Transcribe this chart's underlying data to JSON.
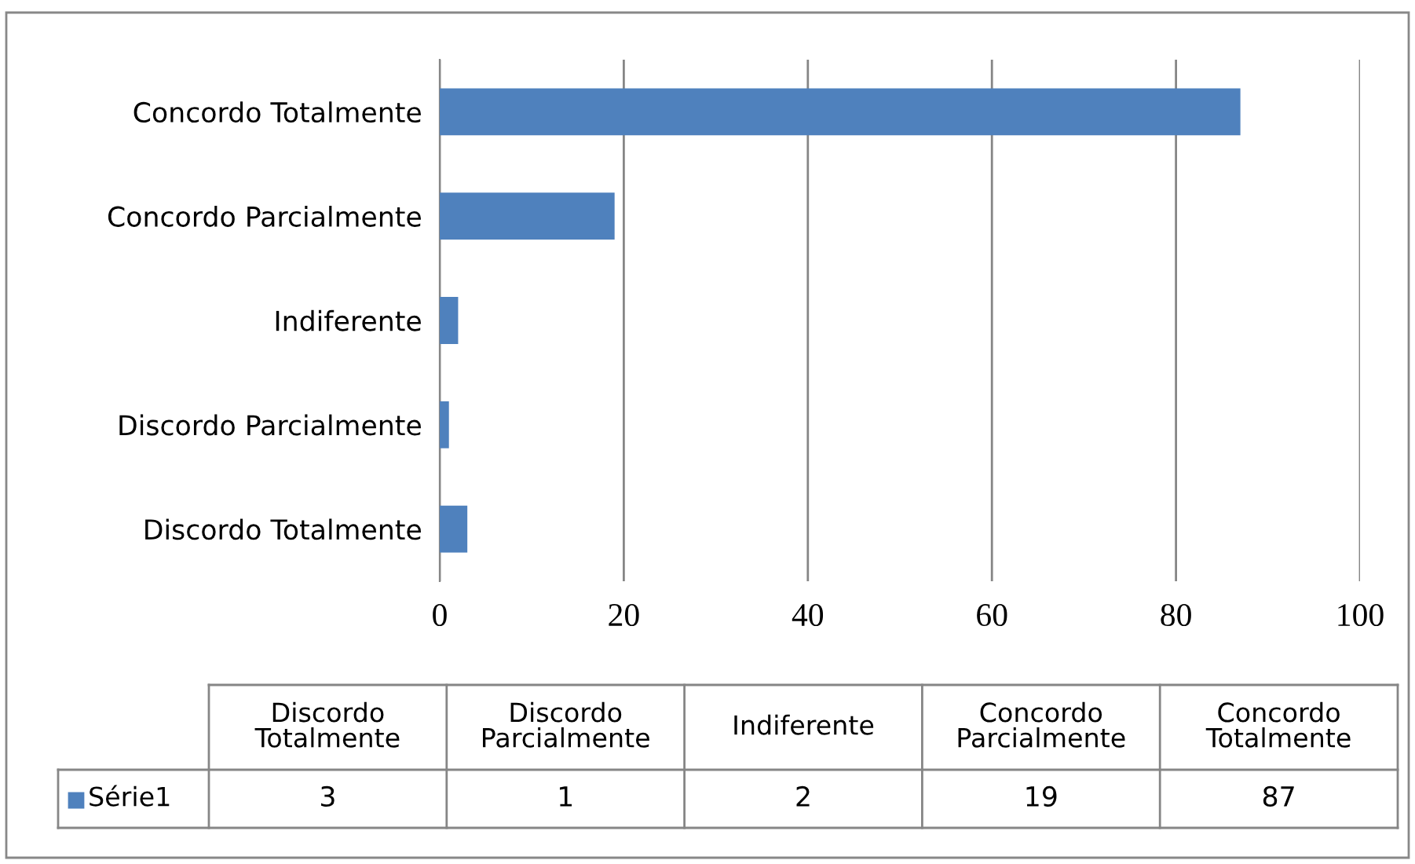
{
  "chart_data": {
    "type": "bar",
    "orientation": "horizontal",
    "categories": [
      "Concordo Totalmente",
      "Concordo Parcialmente",
      "Indiferente",
      "Discordo Parcialmente",
      "Discordo Totalmente"
    ],
    "series": [
      {
        "name": "Série1",
        "color": "#4f81bd",
        "values": [
          87,
          19,
          2,
          1,
          3
        ]
      }
    ],
    "xlim": [
      0,
      100
    ],
    "xticks": [
      0,
      20,
      40,
      60,
      80,
      100
    ],
    "grid": "x",
    "annotations": [
      "3",
      "1",
      "2",
      "19",
      "87"
    ],
    "legend": "bottom"
  }
}
